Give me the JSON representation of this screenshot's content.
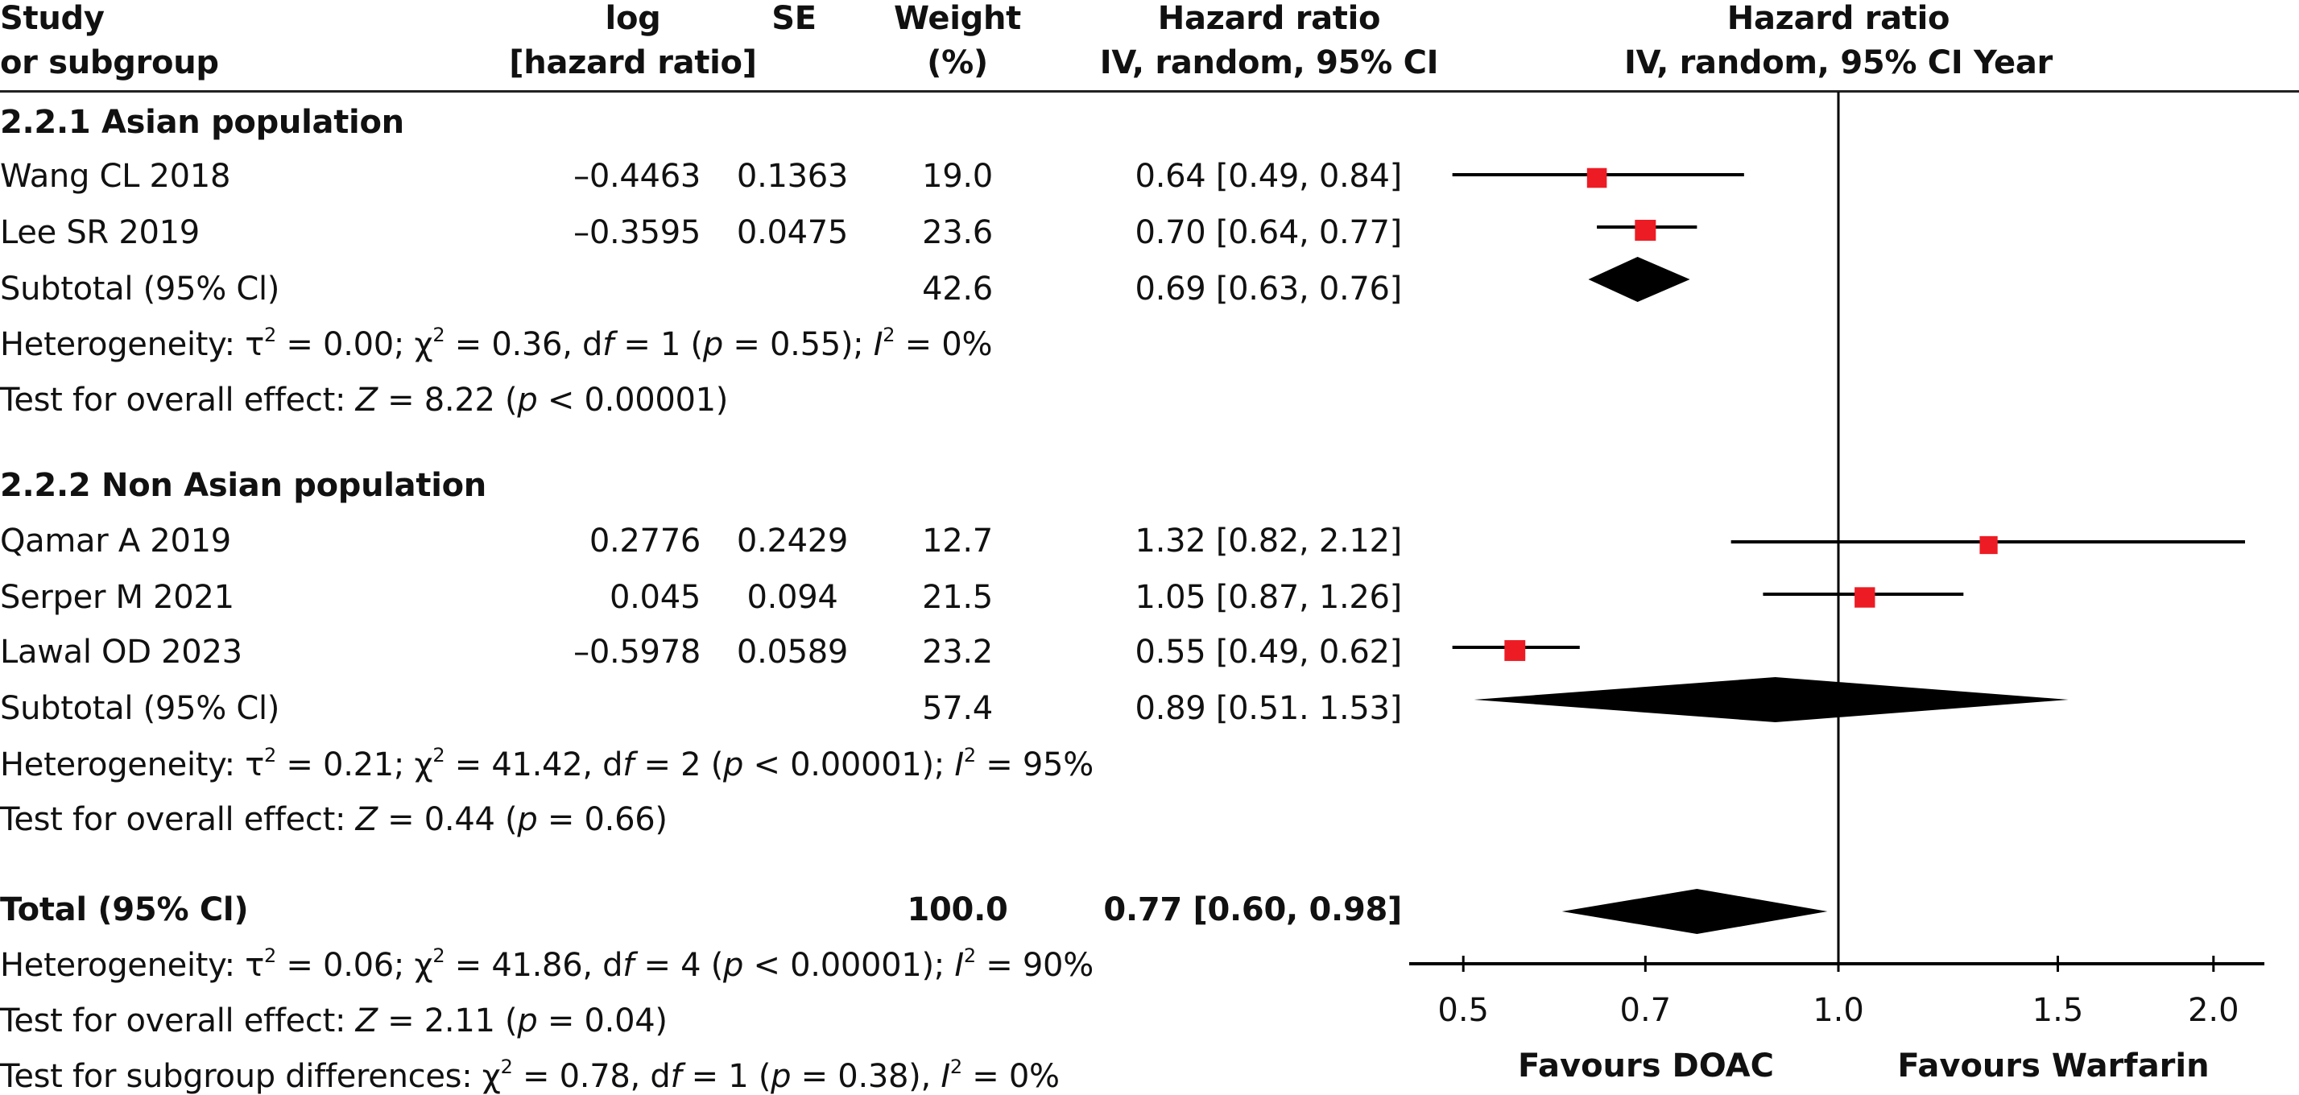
{
  "header": {
    "study_line1": "Study",
    "study_line2": "or subgroup",
    "loghr_line1": "log",
    "loghr_line2": "[hazard ratio]",
    "se": "SE",
    "weight_line1": "Weight",
    "weight_line2": "(%)",
    "hr_line1": "Hazard ratio",
    "hr_line2": "IV, random, 95% CI",
    "plot_line1": "Hazard ratio",
    "plot_line2": "IV, random, 95% CI Year"
  },
  "rows": [
    {
      "kind": "group",
      "label": "2.2.1 Asian population"
    },
    {
      "kind": "study",
      "label": "Wang CL 2018",
      "loghr": "–0.4463",
      "se": "0.1363",
      "weight": "19.0",
      "hr_text": "0.64 [0.49, 0.84]"
    },
    {
      "kind": "study",
      "label": "Lee SR 2019",
      "loghr": "–0.3595",
      "se": "0.0475",
      "weight": "23.6",
      "hr_text": "0.70 [0.64, 0.77]"
    },
    {
      "kind": "subtotal",
      "label": "Subtotal (95% Cl)",
      "weight": "42.6",
      "hr_text": "0.69 [0.63, 0.76]"
    },
    {
      "kind": "note",
      "html": "Heterogeneity: τ<sup>2</sup> = 0.00; χ<sup>2</sup> = 0.36, d<i>f</i> = 1 (<i>p</i> = 0.55); <i>I</i><sup>2</sup> = 0%"
    },
    {
      "kind": "note",
      "html": "Test for overall effect: <i>Z</i> = 8.22 (<i>p</i> &lt; 0.00001)"
    },
    {
      "kind": "group",
      "label": "2.2.2 Non Asian population"
    },
    {
      "kind": "study",
      "label": "Qamar A 2019",
      "loghr": "0.2776",
      "se": "0.2429",
      "weight": "12.7",
      "hr_text": "1.32 [0.82, 2.12]"
    },
    {
      "kind": "study",
      "label": "Serper M 2021",
      "loghr": "0.045",
      "se": "0.094",
      "weight": "21.5",
      "hr_text": "1.05 [0.87, 1.26]"
    },
    {
      "kind": "study",
      "label": "Lawal OD 2023",
      "loghr": "–0.5978",
      "se": "0.0589",
      "weight": "23.2",
      "hr_text": "0.55 [0.49, 0.62]"
    },
    {
      "kind": "subtotal",
      "label": "Subtotal (95% Cl)",
      "weight": "57.4",
      "hr_text": "0.89 [0.51. 1.53]"
    },
    {
      "kind": "note",
      "html": "Heterogeneity: τ<sup>2</sup> = 0.21; χ<sup>2</sup> = 41.42, d<i>f</i> = 2 (<i>p</i> &lt; 0.00001); <i>I</i><sup>2</sup> = 95%"
    },
    {
      "kind": "note",
      "html": "Test for overall effect: <i>Z</i> = 0.44 (<i>p</i> = 0.66)"
    },
    {
      "kind": "total",
      "label": "Total (95% Cl)",
      "weight": "100.0",
      "hr_text": "0.77 [0.60, 0.98]"
    },
    {
      "kind": "note",
      "html": "Heterogeneity: τ<sup>2</sup> = 0.06; χ<sup>2</sup> = 41.86, d<i>f</i> = 4 (<i>p</i> &lt; 0.00001); <i>I</i><sup>2</sup> = 90%"
    },
    {
      "kind": "note",
      "html": "Test for overall effect: <i>Z</i> = 2.11 (<i>p</i> = 0.04)"
    },
    {
      "kind": "note",
      "html": "Test for subgroup differences: χ<sup>2</sup> = 0.78, d<i>f</i> = 1 (<i>p</i> = 0.38), <i>I</i><sup>2</sup> = 0%"
    }
  ],
  "colors": {
    "study_marker": "#ed1c24",
    "diamond": "#000000",
    "line": "#000000",
    "text": "#111111"
  },
  "chart_data": {
    "type": "forest",
    "title": "Hazard ratio IV, random, 95% CI Year",
    "scale": "log",
    "xlim": [
      0.45,
      2.25
    ],
    "null_value": 1.0,
    "ticks": [
      0.5,
      0.7,
      1.0,
      1.5,
      2.0
    ],
    "tick_labels": [
      "0.5",
      "0.7",
      "1.0",
      "1.5",
      "2.0"
    ],
    "xlabel_left": "Favours DOAC",
    "xlabel_right": "Favours Warfarin",
    "studies": [
      {
        "name": "Wang CL 2018",
        "group": "2.2.1 Asian population",
        "hr": 0.64,
        "lo": 0.49,
        "hi": 0.84,
        "weight": 19.0
      },
      {
        "name": "Lee SR 2019",
        "group": "2.2.1 Asian population",
        "hr": 0.7,
        "lo": 0.64,
        "hi": 0.77,
        "weight": 23.6
      },
      {
        "name": "Qamar A 2019",
        "group": "2.2.2 Non Asian population",
        "hr": 1.32,
        "lo": 0.82,
        "hi": 2.12,
        "weight": 12.7
      },
      {
        "name": "Serper M 2021",
        "group": "2.2.2 Non Asian population",
        "hr": 1.05,
        "lo": 0.87,
        "hi": 1.26,
        "weight": 21.5
      },
      {
        "name": "Lawal OD 2023",
        "group": "2.2.2 Non Asian population",
        "hr": 0.55,
        "lo": 0.49,
        "hi": 0.62,
        "weight": 23.2
      }
    ],
    "summaries": [
      {
        "name": "Subtotal Asian",
        "hr": 0.69,
        "lo": 0.63,
        "hi": 0.76,
        "weight": 42.6
      },
      {
        "name": "Subtotal Non Asian",
        "hr": 0.89,
        "lo": 0.51,
        "hi": 1.53,
        "weight": 57.4
      },
      {
        "name": "Total",
        "hr": 0.77,
        "lo": 0.6,
        "hi": 0.98,
        "weight": 100.0
      }
    ]
  }
}
